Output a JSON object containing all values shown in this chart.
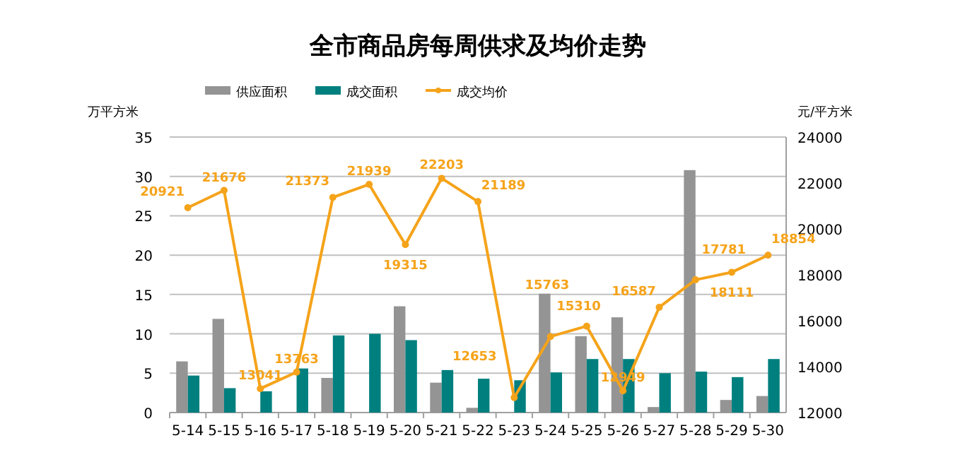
{
  "chart_data": {
    "type": "bar",
    "title": "全市商品房每周供求及均价走势",
    "ylabel": "万平方米",
    "y2label": "元/平方米",
    "categories": [
      "5-14",
      "5-15",
      "5-16",
      "5-17",
      "5-18",
      "5-19",
      "5-20",
      "5-21",
      "5-22",
      "5-23",
      "5-24",
      "5-25",
      "5-26",
      "5-27",
      "5-28",
      "5-29",
      "5-30"
    ],
    "series": [
      {
        "name": "供应面积",
        "type": "bar",
        "color": "#949494",
        "values": [
          6.5,
          11.9,
          0,
          0,
          4.4,
          0,
          13.5,
          3.8,
          0.6,
          0,
          15.1,
          9.7,
          12.1,
          0.7,
          30.8,
          1.6,
          2.1
        ]
      },
      {
        "name": "成交面积",
        "type": "bar",
        "color": "#007f7f",
        "values": [
          4.7,
          3.1,
          2.7,
          5.6,
          9.8,
          10.0,
          9.2,
          5.4,
          4.3,
          4.1,
          5.1,
          6.8,
          6.8,
          5.0,
          5.2,
          4.5,
          6.8
        ]
      },
      {
        "name": "成交均价",
        "type": "line",
        "axis": "y2",
        "color": "#f5a31a",
        "marker": "circle",
        "data_labels": true,
        "values": [
          20921,
          21676,
          13041,
          13763,
          21373,
          21939,
          19315,
          22203,
          21189,
          12653,
          15310,
          15763,
          12949,
          16587,
          17781,
          18111,
          18854
        ]
      }
    ],
    "ylim": [
      0,
      35
    ],
    "yticks": [
      0,
      5,
      10,
      15,
      20,
      25,
      30,
      35
    ],
    "y2lim": [
      12000,
      24000
    ],
    "y2ticks": [
      12000,
      14000,
      16000,
      18000,
      20000,
      22000,
      24000
    ],
    "grid": "y",
    "legend": "top"
  }
}
